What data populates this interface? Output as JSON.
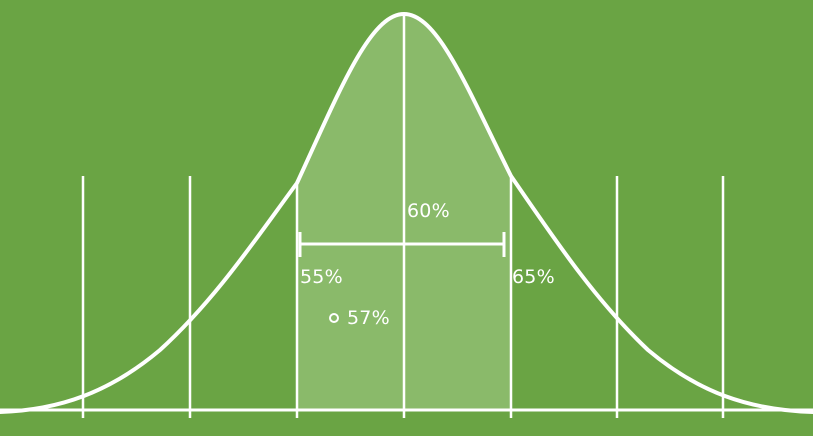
{
  "diagram": {
    "center_label": "60%",
    "lower_label": "55%",
    "upper_label": "65%",
    "sample_label": "57%",
    "colors": {
      "background": "#6aa444",
      "shaded_band": "#8aba6a",
      "line": "#ffffff"
    }
  }
}
